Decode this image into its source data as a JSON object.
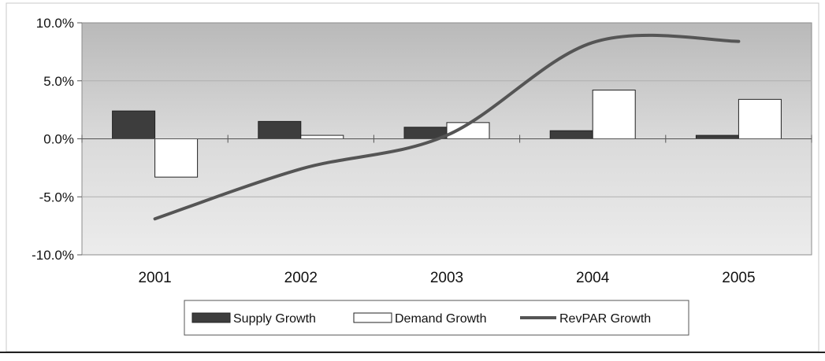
{
  "chart_data": {
    "type": "bar",
    "categories": [
      "2001",
      "2002",
      "2003",
      "2004",
      "2005"
    ],
    "y_ticks": [
      "10.0%",
      "5.0%",
      "0.0%",
      "-5.0%",
      "-10.0%"
    ],
    "ylim": [
      -10,
      10
    ],
    "grid": true,
    "legend_position": "bottom",
    "series": [
      {
        "name": "Supply Growth",
        "kind": "bar",
        "color": "#3d3d3d",
        "values": [
          2.4,
          1.5,
          1.0,
          0.7,
          0.3
        ]
      },
      {
        "name": "Demand Growth",
        "kind": "bar",
        "color": "#ffffff",
        "values": [
          -3.3,
          0.3,
          1.4,
          4.2,
          3.4
        ]
      },
      {
        "name": "RevPAR Growth",
        "kind": "line",
        "color": "#555555",
        "values": [
          -6.9,
          -2.6,
          0.3,
          8.3,
          8.4
        ]
      }
    ],
    "title": "",
    "xlabel": "",
    "ylabel": ""
  }
}
